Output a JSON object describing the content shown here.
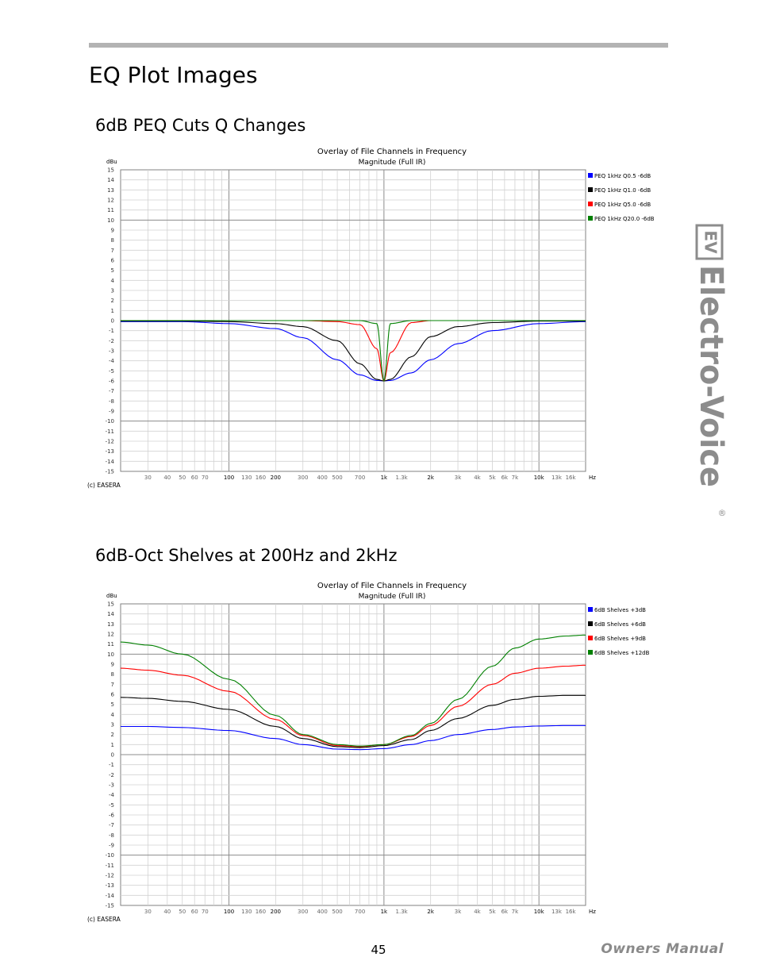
{
  "page": {
    "title": "EQ Plot Images",
    "page_number": "45",
    "manual_label": "Owners Manual",
    "brand": {
      "name": "Electro-Voice",
      "logo_text": "EV",
      "registered": "®",
      "color": "#8c8c8c"
    }
  },
  "charts_meta": [
    {
      "section_title": "6dB PEQ Cuts Q Changes",
      "credit": "(c) EASERA"
    },
    {
      "section_title": "6dB-Oct Shelves at 200Hz and 2kHz",
      "credit": "(c) EASERA"
    }
  ],
  "chart_data": [
    {
      "type": "line",
      "title": "Overlay of File Channels in Frequency",
      "subtitle": "Magnitude (Full IR)",
      "ylabel": "dBu",
      "xlabel": "Hz",
      "x_scale": "log",
      "xlim": [
        20,
        20000
      ],
      "ylim": [
        -15,
        15
      ],
      "grid": true,
      "legend_position": "top-right",
      "y_ticks": [
        "15",
        "14",
        "13",
        "12",
        "11",
        "10",
        "9",
        "8",
        "7",
        "6",
        "5",
        "4",
        "3",
        "2",
        "1",
        "0",
        "-1",
        "-2",
        "-3",
        "-4",
        "-5",
        "-6",
        "-7",
        "-8",
        "-9",
        "-10",
        "-11",
        "-12",
        "-13",
        "-14",
        "-15"
      ],
      "x_tick_labels": [
        {
          "f": 30,
          "label": "30"
        },
        {
          "f": 40,
          "label": "40"
        },
        {
          "f": 50,
          "label": "50"
        },
        {
          "f": 60,
          "label": "60"
        },
        {
          "f": 70,
          "label": "70"
        },
        {
          "f": 100,
          "label": "100"
        },
        {
          "f": 130,
          "label": "130"
        },
        {
          "f": 160,
          "label": "160"
        },
        {
          "f": 200,
          "label": "200"
        },
        {
          "f": 300,
          "label": "300"
        },
        {
          "f": 400,
          "label": "400"
        },
        {
          "f": 500,
          "label": "500"
        },
        {
          "f": 700,
          "label": "700"
        },
        {
          "f": 1000,
          "label": "1k"
        },
        {
          "f": 1300,
          "label": "1.3k"
        },
        {
          "f": 2000,
          "label": "2k"
        },
        {
          "f": 3000,
          "label": "3k"
        },
        {
          "f": 4000,
          "label": "4k"
        },
        {
          "f": 5000,
          "label": "5k"
        },
        {
          "f": 6000,
          "label": "6k"
        },
        {
          "f": 7000,
          "label": "7k"
        },
        {
          "f": 10000,
          "label": "10k"
        },
        {
          "f": 13000,
          "label": "13k"
        },
        {
          "f": 16000,
          "label": "16k"
        }
      ],
      "x": [
        20,
        50,
        100,
        200,
        300,
        500,
        700,
        900,
        1000,
        1100,
        1500,
        2000,
        3000,
        5000,
        10000,
        20000
      ],
      "series": [
        {
          "name": "PEQ 1kHz Q0.5 -6dB",
          "color": "#0000ff",
          "values": [
            -0.1,
            -0.1,
            -0.3,
            -0.8,
            -1.7,
            -3.9,
            -5.4,
            -5.95,
            -6.0,
            -5.95,
            -5.2,
            -3.9,
            -2.3,
            -1.0,
            -0.3,
            -0.1
          ]
        },
        {
          "name": "PEQ 1kHz Q1.0 -6dB",
          "color": "#000000",
          "values": [
            -0.05,
            -0.05,
            -0.1,
            -0.3,
            -0.6,
            -2.0,
            -4.3,
            -5.85,
            -6.0,
            -5.85,
            -3.6,
            -1.6,
            -0.6,
            -0.2,
            -0.05,
            -0.05
          ]
        },
        {
          "name": "PEQ 1kHz Q5.0 -6dB",
          "color": "#ff0000",
          "values": [
            0,
            0,
            0,
            0,
            0,
            -0.1,
            -0.4,
            -2.8,
            -6.0,
            -3.2,
            -0.2,
            0,
            0,
            0,
            0,
            0
          ]
        },
        {
          "name": "PEQ 1kHz Q20.0 -6dB",
          "color": "#008000",
          "values": [
            0,
            0,
            0,
            0,
            0,
            0,
            0,
            -0.3,
            -6.0,
            -0.3,
            0,
            0,
            0,
            0,
            0,
            0
          ]
        }
      ]
    },
    {
      "type": "line",
      "title": "Overlay of File Channels in Frequency",
      "subtitle": "Magnitude (Full IR)",
      "ylabel": "dBu",
      "xlabel": "Hz",
      "x_scale": "log",
      "xlim": [
        20,
        20000
      ],
      "ylim": [
        -15,
        15
      ],
      "grid": true,
      "legend_position": "top-right",
      "y_ticks": [
        "15",
        "14",
        "13",
        "12",
        "11",
        "10",
        "9",
        "8",
        "7",
        "6",
        "5",
        "4",
        "3",
        "2",
        "1",
        "0",
        "-1",
        "-2",
        "-3",
        "-4",
        "-5",
        "-6",
        "-7",
        "-8",
        "-9",
        "-10",
        "-11",
        "-12",
        "-13",
        "-14",
        "-15"
      ],
      "x_tick_labels": [
        {
          "f": 30,
          "label": "30"
        },
        {
          "f": 40,
          "label": "40"
        },
        {
          "f": 50,
          "label": "50"
        },
        {
          "f": 60,
          "label": "60"
        },
        {
          "f": 70,
          "label": "70"
        },
        {
          "f": 100,
          "label": "100"
        },
        {
          "f": 130,
          "label": "130"
        },
        {
          "f": 160,
          "label": "160"
        },
        {
          "f": 200,
          "label": "200"
        },
        {
          "f": 300,
          "label": "300"
        },
        {
          "f": 400,
          "label": "400"
        },
        {
          "f": 500,
          "label": "500"
        },
        {
          "f": 700,
          "label": "700"
        },
        {
          "f": 1000,
          "label": "1k"
        },
        {
          "f": 1300,
          "label": "1.3k"
        },
        {
          "f": 2000,
          "label": "2k"
        },
        {
          "f": 3000,
          "label": "3k"
        },
        {
          "f": 4000,
          "label": "4k"
        },
        {
          "f": 5000,
          "label": "5k"
        },
        {
          "f": 6000,
          "label": "6k"
        },
        {
          "f": 7000,
          "label": "7k"
        },
        {
          "f": 10000,
          "label": "10k"
        },
        {
          "f": 13000,
          "label": "13k"
        },
        {
          "f": 16000,
          "label": "16k"
        }
      ],
      "x": [
        20,
        30,
        50,
        100,
        200,
        300,
        500,
        700,
        1000,
        1500,
        2000,
        3000,
        5000,
        7000,
        10000,
        15000,
        20000
      ],
      "series": [
        {
          "name": "6dB Shelves +3dB",
          "color": "#0000ff",
          "values": [
            2.8,
            2.8,
            2.7,
            2.4,
            1.6,
            1.0,
            0.55,
            0.5,
            0.6,
            1.0,
            1.4,
            2.0,
            2.5,
            2.75,
            2.85,
            2.9,
            2.9
          ]
        },
        {
          "name": "6dB Shelves +6dB",
          "color": "#000000",
          "values": [
            5.7,
            5.6,
            5.3,
            4.5,
            2.8,
            1.6,
            0.8,
            0.7,
            0.9,
            1.5,
            2.4,
            3.6,
            4.9,
            5.5,
            5.8,
            5.9,
            5.9
          ]
        },
        {
          "name": "6dB Shelves +9dB",
          "color": "#ff0000",
          "values": [
            8.6,
            8.4,
            7.9,
            6.3,
            3.5,
            1.9,
            0.9,
            0.8,
            1.0,
            1.8,
            2.9,
            4.8,
            7.0,
            8.1,
            8.6,
            8.8,
            8.9
          ]
        },
        {
          "name": "6dB Shelves +12dB",
          "color": "#008000",
          "values": [
            11.2,
            10.9,
            10.0,
            7.5,
            3.9,
            2.0,
            1.0,
            0.85,
            1.0,
            1.9,
            3.1,
            5.5,
            8.8,
            10.6,
            11.5,
            11.8,
            11.9
          ]
        }
      ]
    }
  ]
}
